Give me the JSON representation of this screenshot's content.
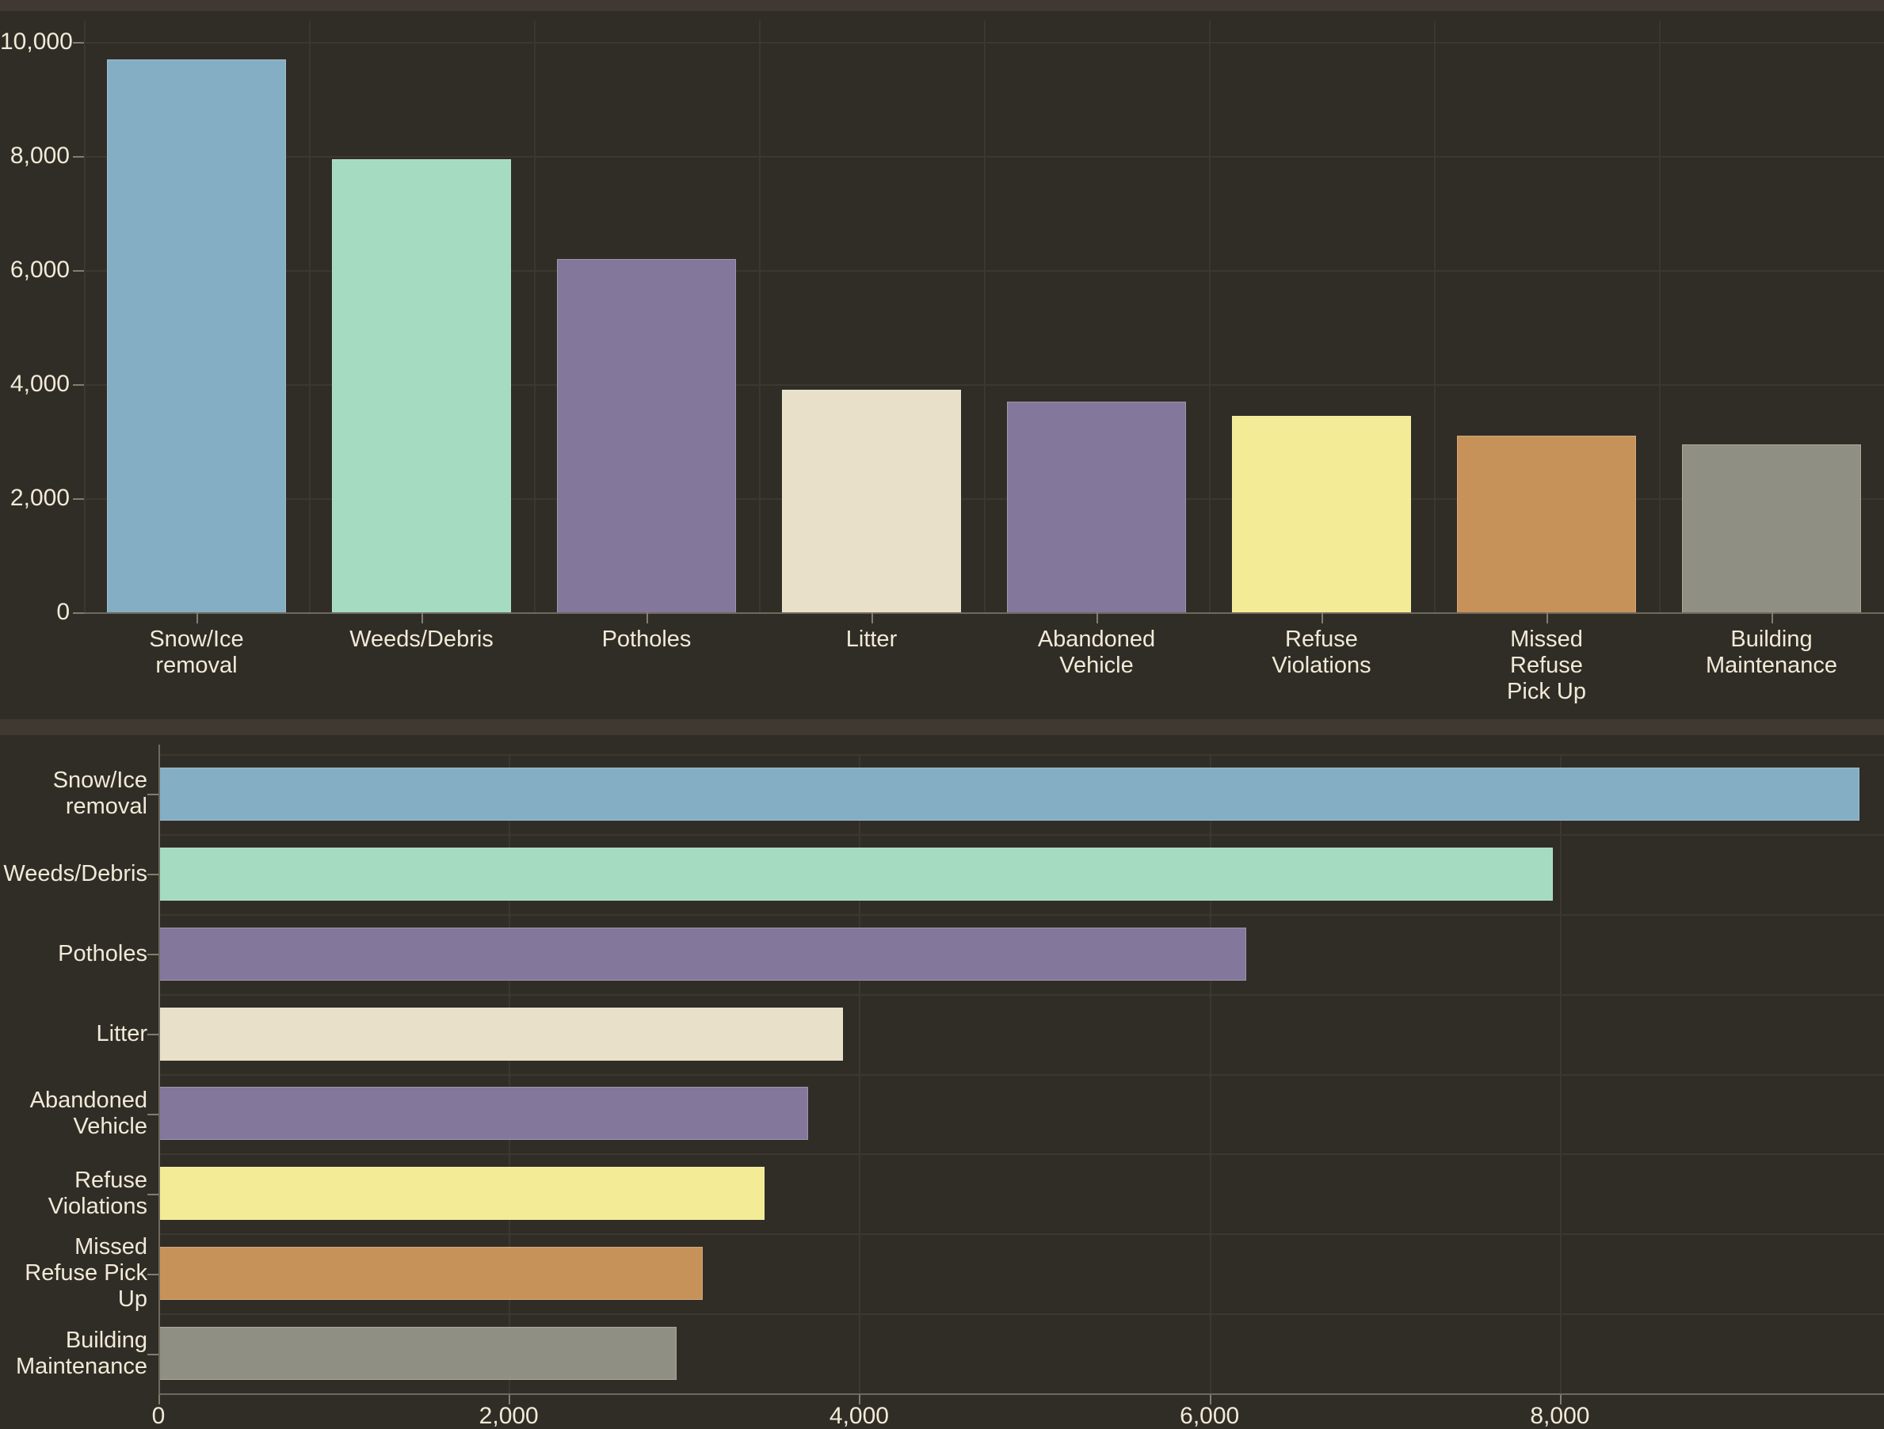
{
  "app": {
    "description": "dark-themed dashboard with two bar charts of service request categories",
    "background_color": "#302d27",
    "panel_divider_color": "#3f3931",
    "grid_color": "#3c372f",
    "axis_color": "#6f695e",
    "tick_color": "#837d6f",
    "text_color": "#f2ead7"
  },
  "chart_data": [
    {
      "type": "bar",
      "orientation": "vertical",
      "title": "",
      "xlabel": "",
      "ylabel": "",
      "grid": true,
      "legend": false,
      "categories": [
        "Snow/Ice removal",
        "Weeds/Debris",
        "Potholes",
        "Litter",
        "Abandoned Vehicle",
        "Refuse Violations",
        "Missed Refuse Pick Up",
        "Building Maintenance"
      ],
      "category_label_lines": [
        [
          "Snow/Ice",
          "removal"
        ],
        [
          "Weeds/Debris"
        ],
        [
          "Potholes"
        ],
        [
          "Litter"
        ],
        [
          "Abandoned",
          "Vehicle"
        ],
        [
          "Refuse",
          "Violations"
        ],
        [
          "Missed",
          "Refuse",
          "Pick Up"
        ],
        [
          "Building",
          "Maintenance"
        ]
      ],
      "values": [
        9700,
        7950,
        6200,
        3900,
        3700,
        3450,
        3100,
        2950
      ],
      "bar_colors": [
        "#84aec4",
        "#a4dbc1",
        "#84779c",
        "#e9e0c9",
        "#84779c",
        "#f3eb95",
        "#c79259",
        "#8f9083"
      ],
      "ylim": [
        0,
        10000
      ],
      "yticks": [
        0,
        2000,
        4000,
        6000,
        8000,
        10000
      ],
      "ytick_labels": [
        "0",
        "2,000",
        "4,000",
        "6,000",
        "8,000",
        "10,000"
      ]
    },
    {
      "type": "bar",
      "orientation": "horizontal",
      "title": "",
      "xlabel": "",
      "ylabel": "",
      "grid": true,
      "legend": false,
      "categories": [
        "Snow/Ice removal",
        "Weeds/Debris",
        "Potholes",
        "Litter",
        "Abandoned Vehicle",
        "Refuse Violations",
        "Missed Refuse Pick Up",
        "Building Maintenance"
      ],
      "category_label_lines": [
        [
          "Snow/Ice",
          "removal"
        ],
        [
          "Weeds/Debris"
        ],
        [
          "Potholes"
        ],
        [
          "Litter"
        ],
        [
          "Abandoned",
          "Vehicle"
        ],
        [
          "Refuse",
          "Violations"
        ],
        [
          "Missed",
          "Refuse Pick",
          "Up"
        ],
        [
          "Building",
          "Maintenance"
        ]
      ],
      "values": [
        9700,
        7950,
        6200,
        3900,
        3700,
        3450,
        3100,
        2950
      ],
      "bar_colors": [
        "#84aec4",
        "#a4dbc1",
        "#84779c",
        "#e9e0c9",
        "#84779c",
        "#f3eb95",
        "#c79259",
        "#8f9083"
      ],
      "xlim": [
        0,
        9850
      ],
      "xticks": [
        0,
        2000,
        4000,
        6000,
        8000
      ],
      "xtick_labels": [
        "0",
        "2,000",
        "4,000",
        "6,000",
        "8,000"
      ]
    }
  ]
}
